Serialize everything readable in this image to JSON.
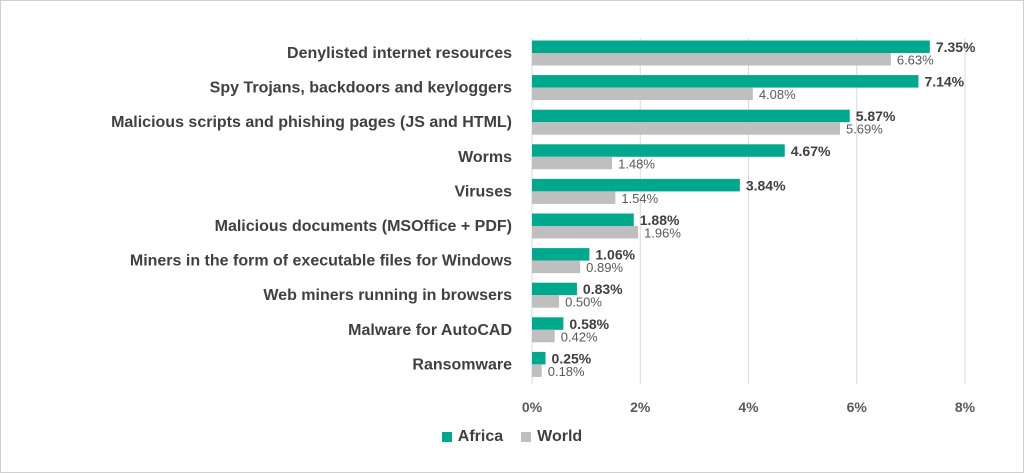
{
  "chart_data": {
    "type": "bar",
    "orientation": "horizontal",
    "categories": [
      "Denylisted internet resources",
      "Spy Trojans, backdoors and keyloggers",
      "Malicious scripts and phishing pages (JS and HTML)",
      "Worms",
      "Viruses",
      "Malicious documents (MSOffice + PDF)",
      "Miners in the form of executable files for Windows",
      "Web miners running in browsers",
      "Malware for AutoCAD",
      "Ransomware"
    ],
    "series": [
      {
        "name": "Africa",
        "color": "#00a88e",
        "values": [
          7.35,
          7.14,
          5.87,
          4.67,
          3.84,
          1.88,
          1.06,
          0.83,
          0.58,
          0.25
        ],
        "labels": [
          "7.35%",
          "7.14%",
          "5.87%",
          "4.67%",
          "3.84%",
          "1.88%",
          "1.06%",
          "0.83%",
          "0.58%",
          "0.25%"
        ]
      },
      {
        "name": "World",
        "color": "#bfbfbf",
        "values": [
          6.63,
          4.08,
          5.69,
          1.48,
          1.54,
          1.96,
          0.89,
          0.5,
          0.42,
          0.18
        ],
        "labels": [
          "6.63%",
          "4.08%",
          "5.69%",
          "1.48%",
          "1.54%",
          "1.96%",
          "0.89%",
          "0.50%",
          "0.42%",
          "0.18%"
        ]
      }
    ],
    "xlim": [
      0,
      8
    ],
    "xticks": [
      0,
      2,
      4,
      6,
      8
    ],
    "xtick_labels": [
      "0%",
      "2%",
      "4%",
      "6%",
      "8%"
    ],
    "grid": true,
    "legend_position": "bottom",
    "title": "",
    "xlabel": "",
    "ylabel": ""
  }
}
